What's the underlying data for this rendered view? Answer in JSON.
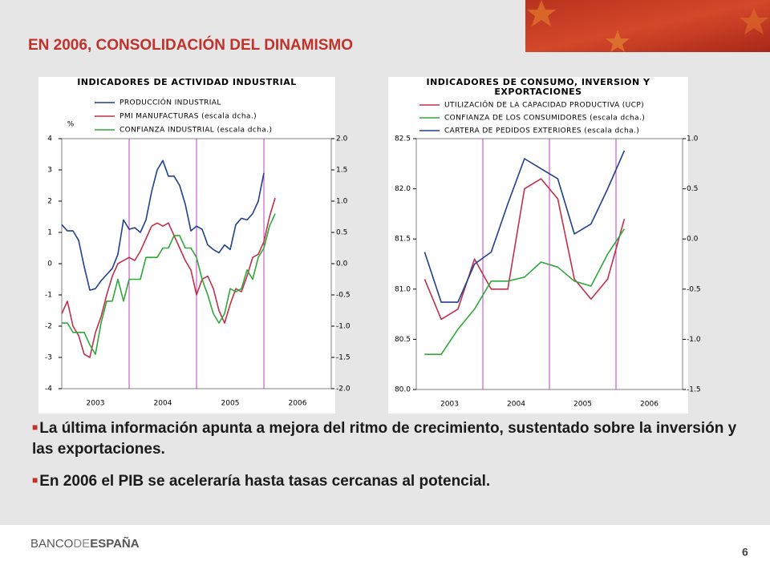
{
  "title": "EN 2006, CONSOLIDACIÓN DEL DINAMISMO",
  "chart_data": [
    {
      "type": "line",
      "title": "INDICADORES DE ACTIVIDAD INDUSTRIAL",
      "y_label": "%",
      "categories": [
        "2003",
        "2004",
        "2005",
        "2006"
      ],
      "xlim": [
        2003,
        2007
      ],
      "x": [
        2003.0,
        2003.083,
        2003.167,
        2003.25,
        2003.333,
        2003.417,
        2003.5,
        2003.583,
        2003.667,
        2003.75,
        2003.833,
        2003.917,
        2004.0,
        2004.083,
        2004.167,
        2004.25,
        2004.333,
        2004.417,
        2004.5,
        2004.583,
        2004.667,
        2004.75,
        2004.833,
        2004.917,
        2005.0,
        2005.083,
        2005.167,
        2005.25,
        2005.333,
        2005.417,
        2005.5,
        2005.583,
        2005.667,
        2005.75,
        2005.833,
        2005.917,
        2006.0,
        2006.083,
        2006.167
      ],
      "ylim": [
        -4,
        4
      ],
      "yticks": [
        -4,
        -3,
        -2,
        -1,
        0,
        1,
        2,
        3,
        4
      ],
      "y2lim": [
        -2,
        2
      ],
      "y2ticks": [
        {
          "value": -2,
          "label": "-2.0"
        },
        -1.5,
        {
          "value": -1,
          "label": "-1.0"
        },
        -0.5,
        {
          "value": 0,
          "label": "0.0"
        },
        0.5,
        {
          "value": 1,
          "label": "1.0"
        },
        1.5,
        {
          "value": 2,
          "label": "2.0"
        }
      ],
      "series": [
        {
          "name": "PRODUCCIÓN INDUSTRIAL",
          "color": "#1f3f8f",
          "values": [
            1.25,
            1.05,
            1.05,
            0.75,
            -0.1,
            -0.85,
            -0.8,
            -0.55,
            -0.35,
            -0.15,
            0.3,
            1.4,
            1.1,
            1.15,
            1.0,
            1.4,
            2.3,
            3.0,
            3.3,
            2.8,
            2.8,
            2.5,
            1.9,
            1.05,
            1.2,
            1.1,
            0.6,
            0.45,
            0.35,
            0.6,
            0.45,
            1.25,
            1.45,
            1.4,
            1.6,
            2.0,
            2.9,
            null,
            null
          ]
        },
        {
          "name": "PMI MANUFACTURAS (escala dcha.)",
          "color": "#c0304a",
          "axis": "y2",
          "values": [
            -0.8,
            -0.6,
            -1.0,
            -1.15,
            -1.45,
            -1.5,
            -1.1,
            -0.85,
            -0.5,
            -0.2,
            0.0,
            0.05,
            0.1,
            0.05,
            0.2,
            0.4,
            0.6,
            0.65,
            0.6,
            0.65,
            0.45,
            0.25,
            0.05,
            -0.1,
            -0.5,
            -0.25,
            -0.2,
            -0.4,
            -0.75,
            -0.95,
            -0.65,
            -0.4,
            -0.45,
            -0.2,
            0.1,
            0.15,
            0.35,
            0.75,
            1.05
          ]
        },
        {
          "name": "CONFIANZA INDUSTRIAL (escala dcha.)",
          "color": "#2fa83a",
          "axis": "y2",
          "values": [
            -0.95,
            -0.95,
            -1.1,
            -1.1,
            -1.1,
            -1.3,
            -1.45,
            -0.95,
            -0.6,
            -0.6,
            -0.25,
            -0.6,
            -0.25,
            -0.25,
            -0.25,
            0.1,
            0.1,
            0.1,
            0.25,
            0.25,
            0.45,
            0.45,
            0.25,
            0.25,
            0.1,
            -0.25,
            -0.5,
            -0.8,
            -0.95,
            -0.8,
            -0.4,
            -0.45,
            -0.4,
            -0.1,
            -0.25,
            0.1,
            0.25,
            0.6,
            0.8
          ]
        }
      ]
    },
    {
      "type": "line",
      "title": "INDICADORES DE CONSUMO, INVERSIÓN Y EXPORTACIONES",
      "categories": [
        "2003",
        "2004",
        "2005",
        "2006"
      ],
      "xlim": [
        2003,
        2007
      ],
      "x": [
        2003.125,
        2003.375,
        2003.625,
        2003.875,
        2004.125,
        2004.375,
        2004.625,
        2004.875,
        2005.125,
        2005.375,
        2005.625,
        2005.875,
        2006.125
      ],
      "ylim": [
        80,
        82.5
      ],
      "yticks": [
        {
          "value": 80,
          "label": "80.0"
        },
        80.5,
        {
          "value": 81,
          "label": "81.0"
        },
        81.5,
        {
          "value": 82,
          "label": "82.0"
        },
        82.5
      ],
      "y2lim": [
        -1.5,
        1
      ],
      "y2ticks": [
        -1.5,
        {
          "value": -1,
          "label": "-1.0"
        },
        -0.5,
        {
          "value": 0,
          "label": "0.0"
        },
        0.5,
        {
          "value": 1,
          "label": "1.0"
        }
      ],
      "series": [
        {
          "name": "UTILIZACIÓN DE LA CAPACIDAD PRODUCTIVA (UCP)",
          "color": "#c0304a",
          "values": [
            81.1,
            80.7,
            80.8,
            81.3,
            81.0,
            81.0,
            82.0,
            82.1,
            81.9,
            81.1,
            80.9,
            81.1,
            81.7
          ]
        },
        {
          "name": "CONFIANZA DE LOS CONSUMIDORES (escala dcha.)",
          "color": "#2fa83a",
          "axis": "y2",
          "values": [
            -1.15,
            -1.15,
            -0.9,
            -0.7,
            -0.42,
            -0.42,
            -0.38,
            -0.23,
            -0.28,
            -0.42,
            -0.47,
            -0.15,
            0.1
          ]
        },
        {
          "name": "CARTERA DE PEDIDOS EXTERIORES (escala dcha.)",
          "color": "#1f3f8f",
          "axis": "y2",
          "values": [
            -0.13,
            -0.63,
            -0.63,
            -0.25,
            -0.13,
            0.35,
            0.8,
            0.7,
            0.6,
            0.05,
            0.15,
            0.5,
            0.88
          ]
        }
      ]
    }
  ],
  "bullets": [
    "La última información apunta a mejora del ritmo de crecimiento, sustentado sobre la inversión y las exportaciones.",
    "En 2006 el PIB se aceleraría hasta tasas cercanas al potencial."
  ],
  "footer": {
    "logo": [
      "BANCO",
      "DE",
      "ESPAÑA"
    ],
    "page": "6"
  }
}
